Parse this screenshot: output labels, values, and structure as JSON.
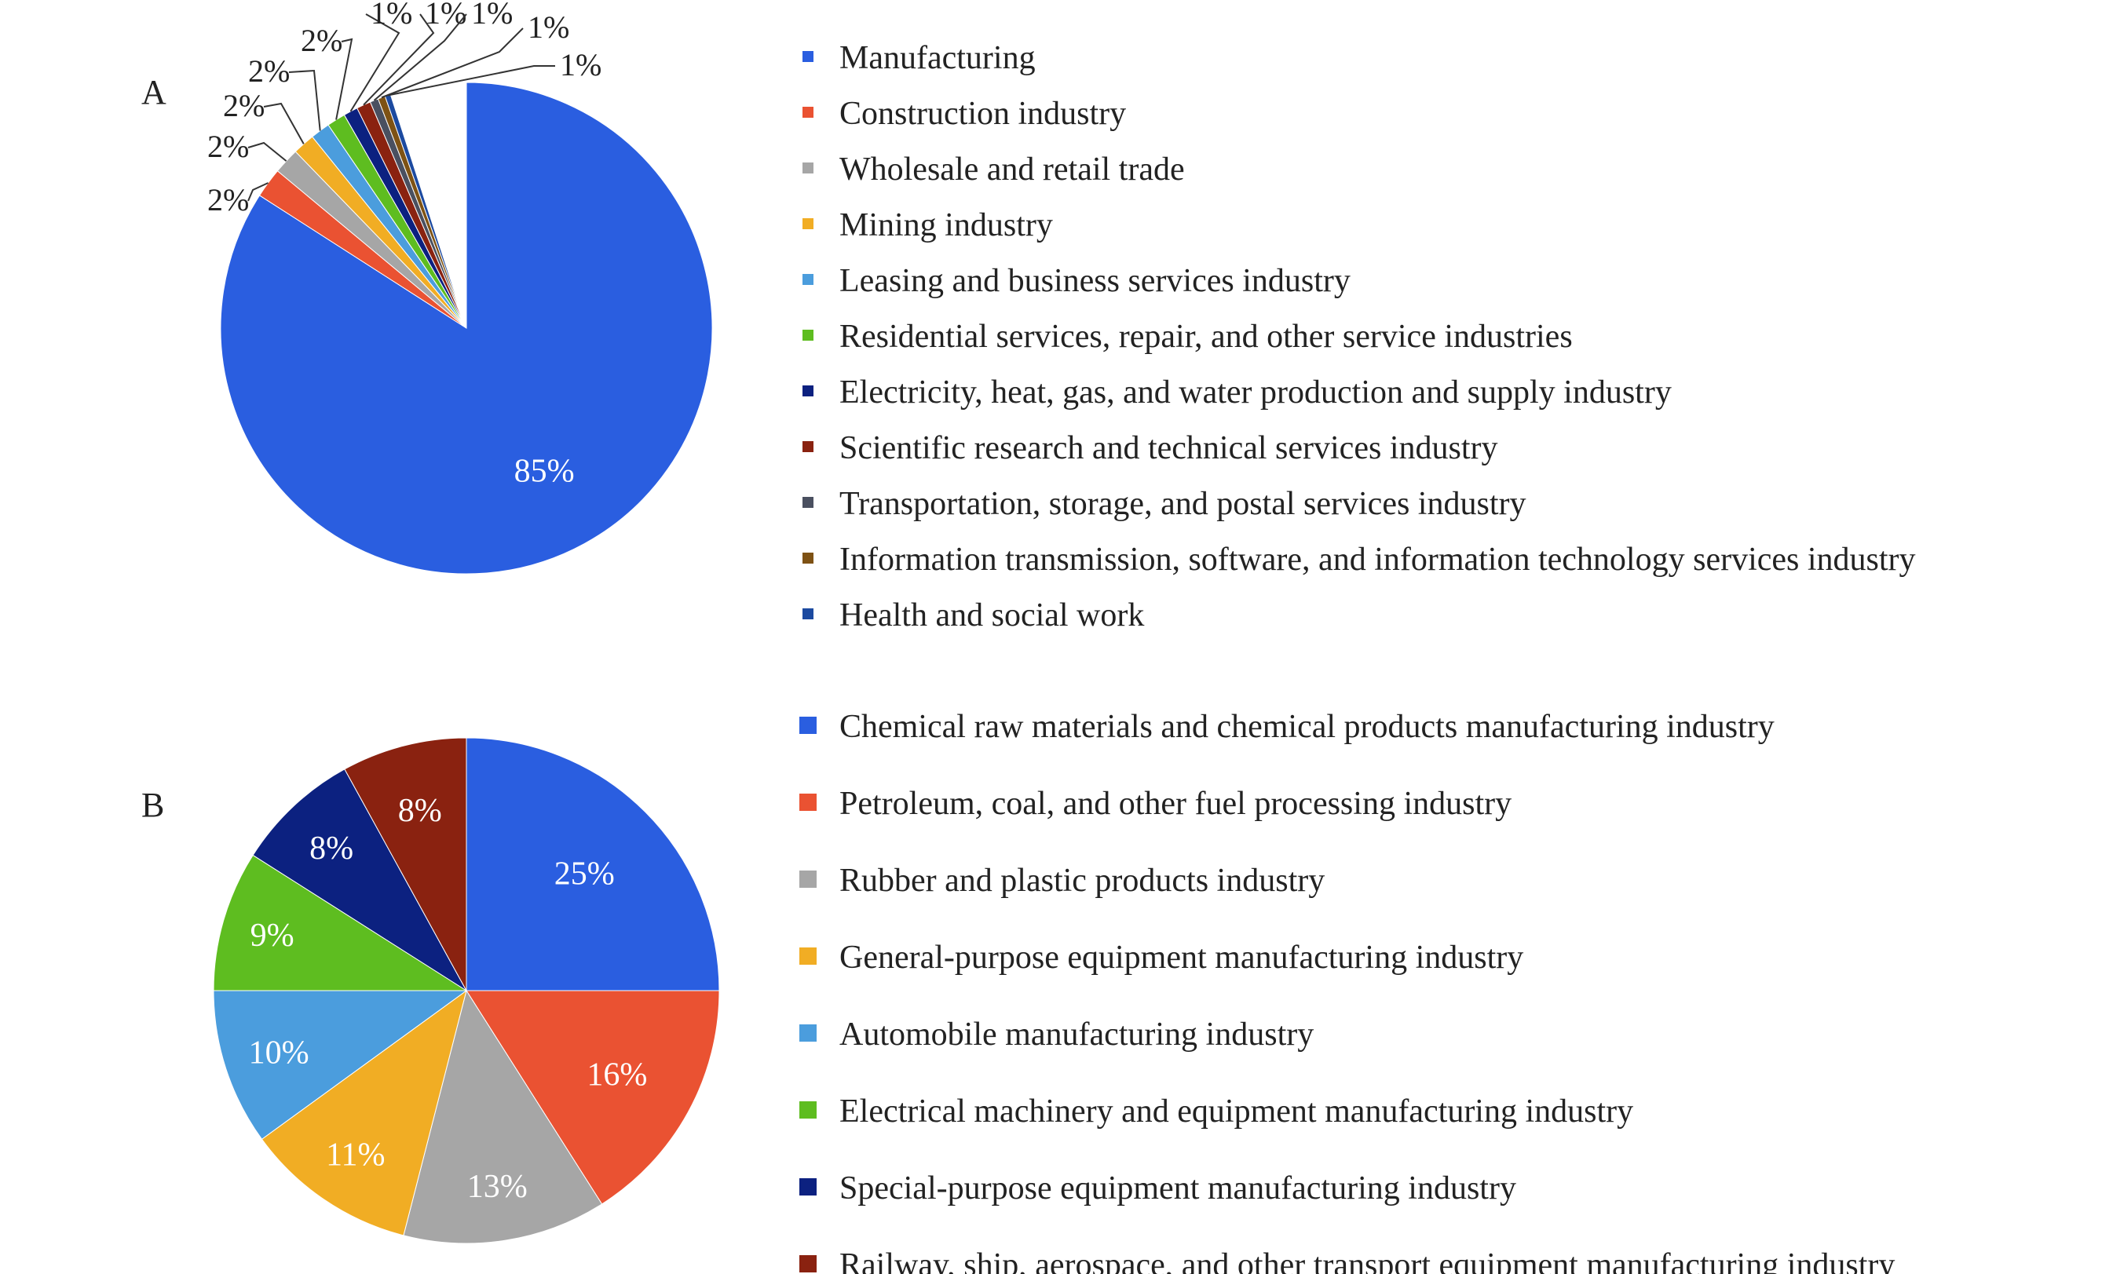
{
  "chart_data": [
    {
      "type": "pie",
      "panel": "A",
      "title": "",
      "categories": [
        "Manufacturing",
        "Construction industry",
        "Wholesale and retail trade",
        "Mining industry",
        "Leasing and business services industry",
        "Residential services, repair, and other service industries",
        "Electricity, heat, gas, and water production and supply industry",
        "Scientific research and technical services industry",
        "Transportation, storage, and postal services industry",
        "Information transmission, software, and information technology services industry",
        "Health and social work"
      ],
      "values": [
        85,
        2,
        2,
        2,
        2,
        2,
        1,
        1,
        1,
        1,
        1
      ],
      "labels": [
        "85%",
        "2%",
        "2%",
        "2%",
        "2%",
        "2%",
        "1%",
        "1%",
        "1%",
        "1%",
        "1%"
      ],
      "slice_fraction": [
        0.8408,
        0.0197,
        0.0171,
        0.0145,
        0.0129,
        0.0122,
        0.0094,
        0.0094,
        0.0055,
        0.0048,
        0.0037
      ],
      "colors": [
        "#2a5ee0",
        "#ea5232",
        "#a6a6a6",
        "#f1ad24",
        "#4b9ddd",
        "#5ebd20",
        "#0c2180",
        "#8a2210",
        "#4a5060",
        "#7e5214",
        "#1c4aa0"
      ],
      "legend_position": "right"
    },
    {
      "type": "pie",
      "panel": "B",
      "title": "",
      "categories": [
        "Chemical raw materials and chemical products manufacturing industry",
        "Petroleum, coal, and other fuel processing industry",
        "Rubber and plastic products industry",
        "General-purpose equipment manufacturing industry",
        "Automobile manufacturing industry",
        "Electrical machinery and equipment manufacturing industry",
        "Special-purpose equipment manufacturing industry",
        "Railway, ship, aerospace, and other transport equipment manufacturing industry"
      ],
      "values": [
        25,
        16,
        13,
        11,
        10,
        9,
        8,
        8
      ],
      "labels": [
        "25%",
        "16%",
        "13%",
        "11%",
        "10%",
        "9%",
        "8%",
        "8%"
      ],
      "colors": [
        "#2a5ee0",
        "#ea5232",
        "#a6a6a6",
        "#f1ad24",
        "#4b9ddd",
        "#5ebd20",
        "#0c2180",
        "#8a2210"
      ],
      "legend_position": "right"
    }
  ]
}
